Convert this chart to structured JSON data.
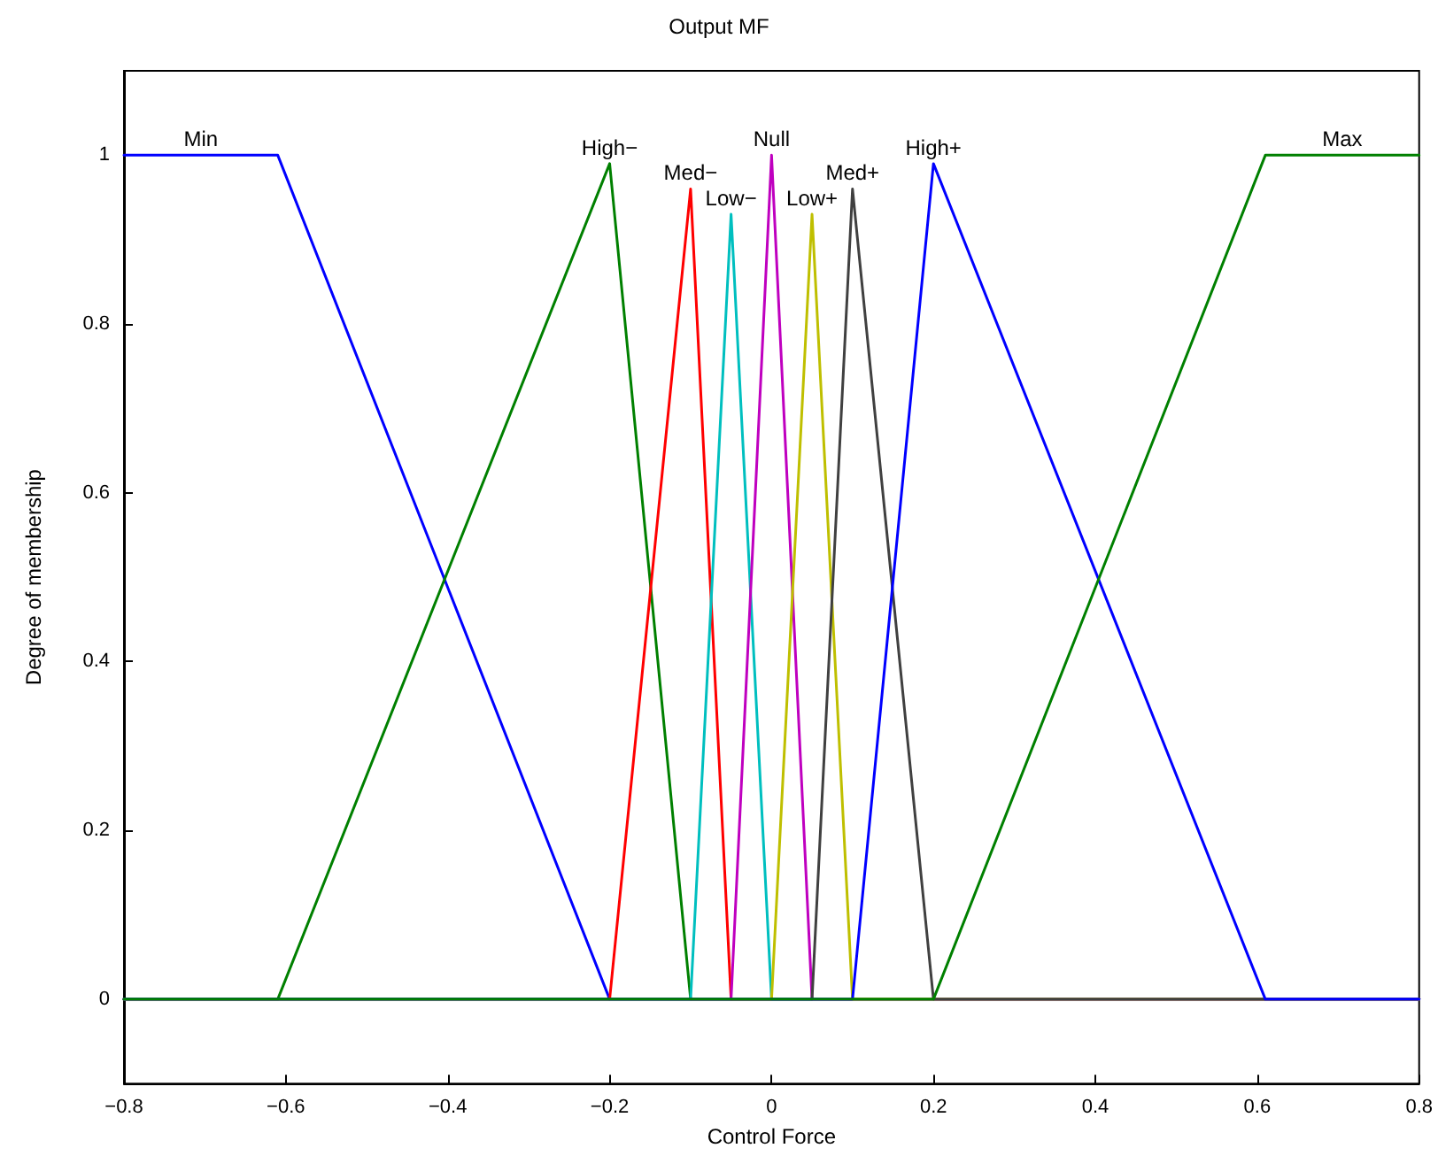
{
  "chart_data": {
    "type": "line",
    "title": "Output MF",
    "xlabel": "Control Force",
    "ylabel": "Degree of membership",
    "xlim": [
      -0.8,
      0.8
    ],
    "xticks": [
      -0.8,
      -0.6,
      -0.4,
      -0.2,
      0,
      0.2,
      0.4,
      0.6,
      0.8
    ],
    "ylim": [
      -0.1,
      1.1
    ],
    "yticks": [
      0,
      0.2,
      0.4,
      0.6,
      0.8,
      1
    ],
    "grid": false,
    "legend": false,
    "marker": "none",
    "line_style": "solid",
    "series": [
      {
        "name": "Min",
        "color": "#0000ff",
        "x": [
          -0.8,
          -0.61,
          -0.2,
          0.8
        ],
        "values": [
          1,
          1,
          0,
          0
        ]
      },
      {
        "name": "High−",
        "color": "#008000",
        "x": [
          -0.8,
          -0.61,
          -0.2,
          -0.1,
          0.8
        ],
        "values": [
          0,
          0,
          0.99,
          0,
          0
        ]
      },
      {
        "name": "Med−",
        "color": "#ff0000",
        "x": [
          -0.8,
          -0.2,
          -0.1,
          -0.05,
          0.8
        ],
        "values": [
          0,
          0,
          0.96,
          0,
          0
        ]
      },
      {
        "name": "Low−",
        "color": "#00bfbf",
        "x": [
          -0.8,
          -0.1,
          -0.05,
          0,
          0.8
        ],
        "values": [
          0,
          0,
          0.93,
          0,
          0
        ]
      },
      {
        "name": "Null",
        "color": "#bf00bf",
        "x": [
          -0.8,
          -0.05,
          0,
          0.05,
          0.8
        ],
        "values": [
          0,
          0,
          1,
          0,
          0
        ]
      },
      {
        "name": "Low+",
        "color": "#bfbf00",
        "x": [
          -0.8,
          0,
          0.05,
          0.1,
          0.8
        ],
        "values": [
          0,
          0,
          0.93,
          0,
          0
        ]
      },
      {
        "name": "Med+",
        "color": "#404040",
        "x": [
          -0.8,
          0.05,
          0.1,
          0.2,
          0.8
        ],
        "values": [
          0,
          0,
          0.96,
          0,
          0
        ]
      },
      {
        "name": "High+",
        "color": "#0000ff",
        "x": [
          -0.8,
          0.1,
          0.2,
          0.61,
          0.8
        ],
        "values": [
          0,
          0,
          0.99,
          0,
          0
        ]
      },
      {
        "name": "Max",
        "color": "#008000",
        "x": [
          -0.8,
          0.2,
          0.61,
          0.8
        ],
        "values": [
          0,
          0,
          1,
          1
        ]
      }
    ]
  }
}
